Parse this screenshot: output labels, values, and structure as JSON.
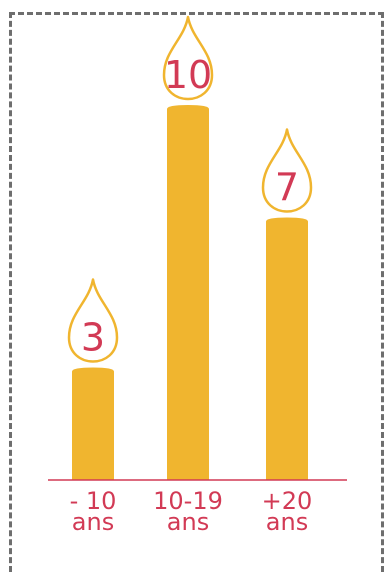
{
  "chart_data": {
    "type": "bar",
    "categories": [
      {
        "line1": "- 10",
        "line2": "ans"
      },
      {
        "line1": "10-19",
        "line2": "ans"
      },
      {
        "line1": "+20",
        "line2": "ans"
      }
    ],
    "values": [
      3,
      10,
      7
    ],
    "ylim": [
      0,
      10
    ],
    "grid": false,
    "colors": {
      "bar": "#f0b52f",
      "flame_stroke": "#f0b52f",
      "text": "#d23a55",
      "baseline": "#d23a55"
    }
  }
}
